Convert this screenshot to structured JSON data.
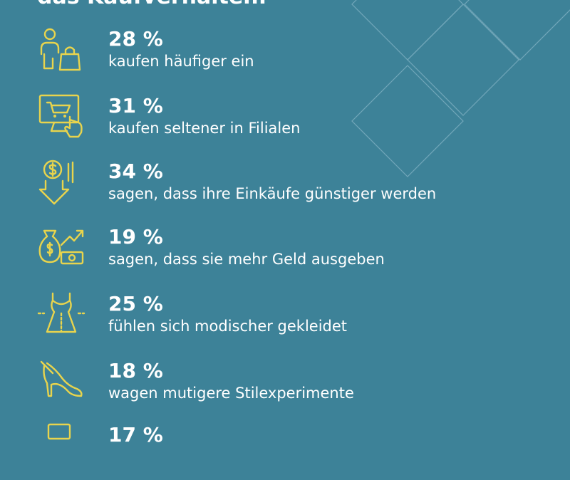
{
  "header": {
    "text": "das Kaufverhalten:"
  },
  "colors": {
    "background": "#3d8298",
    "accent": "#e8d44d",
    "text": "#ffffff"
  },
  "items": [
    {
      "icon": "shopping-person-icon",
      "percent": "28 %",
      "text": "kaufen häufiger ein"
    },
    {
      "icon": "online-shopping-icon",
      "percent": "31 %",
      "text": "kaufen seltener in Filialen"
    },
    {
      "icon": "price-down-icon",
      "percent": "34 %",
      "text": "sagen, dass ihre Einkäufe günstiger werden"
    },
    {
      "icon": "money-growth-icon",
      "percent": "19 %",
      "text": "sagen, dass sie mehr Geld ausgeben"
    },
    {
      "icon": "dress-icon",
      "percent": "25 %",
      "text": "fühlen sich modischer gekleidet"
    },
    {
      "icon": "high-heel-icon",
      "percent": "18 %",
      "text": "wagen mutigere Stilexperimente"
    },
    {
      "icon": "partial-icon",
      "percent": "17 %",
      "text": ""
    }
  ]
}
